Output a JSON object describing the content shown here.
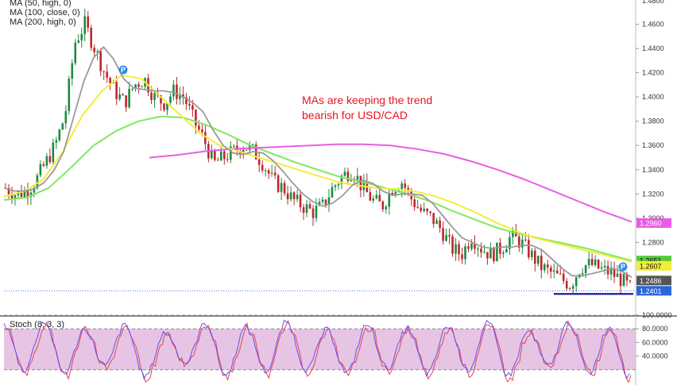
{
  "legend": {
    "ma50": "MA (50, high, 0)",
    "ma100": "MA (100, close, 0)",
    "ma200": "MA (200, high, 0)",
    "stoch": "Stoch (8, 3, 3)"
  },
  "annotation": {
    "line1": "MAs are keeping the trend",
    "line2": "bearish for USD/CAD"
  },
  "colors": {
    "up": "#1e8a3e",
    "down": "#c0262d",
    "ma_gray": "#9a9a9a",
    "ma_yellow": "#f2ee3a",
    "ma_green": "#7ee861",
    "ma_magenta": "#e95ce6",
    "stoch_k": "#6c4cf0",
    "stoch_d": "#e8434d",
    "stoch_band": "#e2bfe0"
  },
  "chart_data": [
    {
      "type": "candlestick",
      "symbol": "USD/CAD",
      "ylim": [
        1.22,
        1.48
      ],
      "y_ticks": [
        1.46,
        1.44,
        1.42,
        1.4,
        1.38,
        1.36,
        1.34,
        1.32,
        1.3,
        1.28
      ],
      "y_tick_labels": [
        "1.4600",
        "1.4400",
        "1.4200",
        "1.4000",
        "1.3800",
        "1.3600",
        "1.3400",
        "1.3200",
        "1.3000",
        "1.2800"
      ],
      "top_partial_tick": "1.4800",
      "price_path": [
        1.325,
        1.32,
        1.322,
        1.33,
        1.345,
        1.36,
        1.385,
        1.445,
        1.46,
        1.44,
        1.42,
        1.405,
        1.395,
        1.41,
        1.415,
        1.4,
        1.395,
        1.405,
        1.4,
        1.38,
        1.365,
        1.345,
        1.35,
        1.355,
        1.36,
        1.355,
        1.345,
        1.33,
        1.325,
        1.315,
        1.31,
        1.305,
        1.31,
        1.325,
        1.335,
        1.34,
        1.325,
        1.315,
        1.31,
        1.325,
        1.33,
        1.315,
        1.305,
        1.3,
        1.29,
        1.275,
        1.27,
        1.285,
        1.275,
        1.27,
        1.275,
        1.285,
        1.28,
        1.27,
        1.26,
        1.255,
        1.25,
        1.245,
        1.26,
        1.262,
        1.258,
        1.255,
        1.25,
        1.242
      ],
      "ma50_high": [
        1.318,
        1.322,
        1.332,
        1.355,
        1.385,
        1.405,
        1.418,
        1.415,
        1.4,
        1.385,
        1.37,
        1.36,
        1.355,
        1.35,
        1.345,
        1.34,
        1.335,
        1.33,
        1.327,
        1.325,
        1.324,
        1.322,
        1.318,
        1.312,
        1.305,
        1.297,
        1.29,
        1.284,
        1.28,
        1.276,
        1.272,
        1.268,
        1.264
      ],
      "ma100_close": [
        1.315,
        1.317,
        1.325,
        1.342,
        1.36,
        1.372,
        1.38,
        1.384,
        1.383,
        1.377,
        1.369,
        1.36,
        1.353,
        1.346,
        1.34,
        1.334,
        1.33,
        1.325,
        1.32,
        1.314,
        1.306,
        1.299,
        1.292,
        1.287,
        1.283,
        1.279,
        1.275,
        1.27,
        1.265
      ],
      "ma200_high": [
        1.35,
        1.352,
        1.355,
        1.357,
        1.358,
        1.359,
        1.36,
        1.361,
        1.361,
        1.36,
        1.357,
        1.353,
        1.347,
        1.34,
        1.332,
        1.323,
        1.314,
        1.305,
        1.297
      ],
      "current_price_label": "1.2401",
      "price_labels": [
        {
          "value": 1.296,
          "label": "1.2960",
          "color": "#e95ce6"
        },
        {
          "value": 1.2651,
          "label": "1.2651",
          "color": "#58c839"
        },
        {
          "value": 1.2607,
          "label": "1.2607",
          "color": "#f2ee3a"
        },
        {
          "value": 1.2486,
          "label": "1.2486",
          "color": "#555555"
        },
        {
          "value": 1.2401,
          "label": "1.2401",
          "color": "#2a66d6"
        }
      ],
      "horizontal_line": 1.2375,
      "pivot_markers": [
        "P",
        "P"
      ]
    },
    {
      "type": "line",
      "title": "Stoch (8, 3, 3)",
      "ylim": [
        0,
        100
      ],
      "y_ticks": [
        100,
        80,
        60,
        40
      ],
      "y_tick_labels": [
        "100.0000",
        "80.0000",
        "60.0000",
        "40.0000"
      ],
      "overbought": 80,
      "oversold": 20,
      "oscillation_peaks": [
        85,
        20,
        90,
        15,
        80,
        25,
        85,
        10,
        75,
        30,
        88,
        12,
        82,
        18,
        90,
        20,
        78,
        15,
        86,
        22,
        80,
        14,
        84,
        20,
        88,
        12,
        76,
        25,
        90,
        15,
        82,
        10
      ]
    }
  ]
}
